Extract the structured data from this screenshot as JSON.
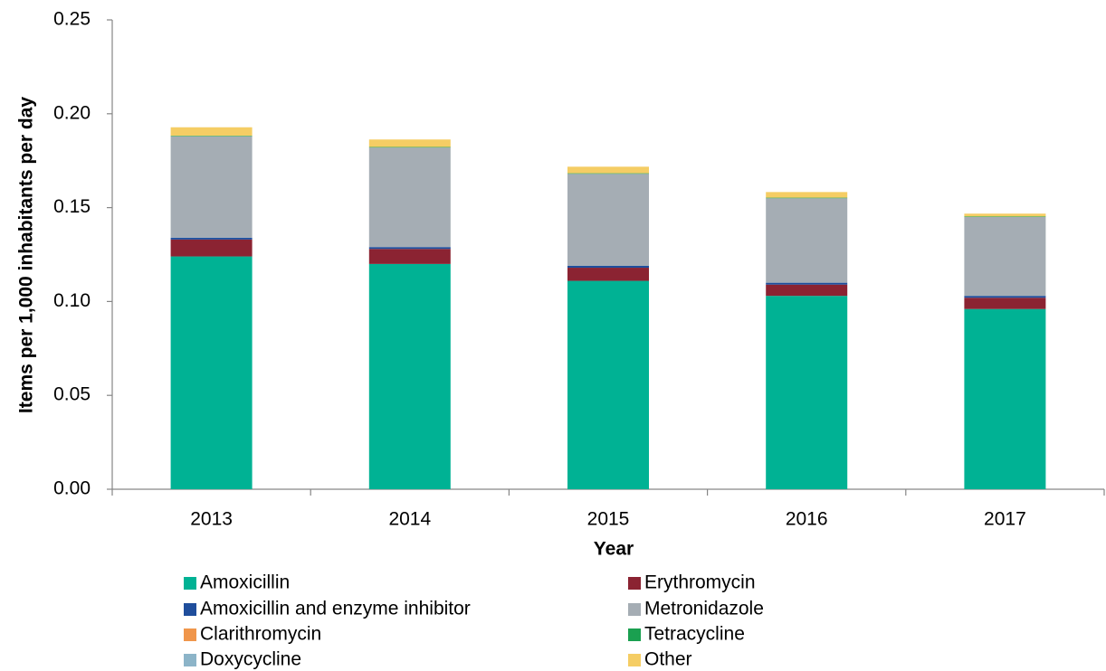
{
  "chart_data": {
    "type": "stacked_bar",
    "x_label": "Year",
    "y_label": "Items per 1,000 inhabitants per day",
    "categories": [
      "2013",
      "2014",
      "2015",
      "2016",
      "2017"
    ],
    "series": [
      {
        "name": "Amoxicillin",
        "color": "#00b294",
        "values": [
          0.124,
          0.12,
          0.111,
          0.103,
          0.096
        ]
      },
      {
        "name": "Erythromycin",
        "color": "#8b2332",
        "values": [
          0.009,
          0.008,
          0.007,
          0.006,
          0.006
        ]
      },
      {
        "name": "Amoxicillin and enzyme inhibitor",
        "color": "#1f4e9c",
        "values": [
          0.001,
          0.001,
          0.001,
          0.001,
          0.001
        ]
      },
      {
        "name": "Metronidazole",
        "color": "#a5adb4",
        "values": [
          0.054,
          0.053,
          0.049,
          0.045,
          0.042
        ]
      },
      {
        "name": "Clarithromycin",
        "color": "#f0964b",
        "values": [
          0,
          0,
          0,
          0,
          0
        ]
      },
      {
        "name": "Tetracycline",
        "color": "#1aa050",
        "values": [
          0.0003,
          0.0003,
          0.0003,
          0.0003,
          0.0003
        ]
      },
      {
        "name": "Doxycycline",
        "color": "#8cb4c8",
        "values": [
          0,
          0,
          0,
          0,
          0
        ]
      },
      {
        "name": "Other",
        "color": "#f5cd64",
        "values": [
          0.0045,
          0.004,
          0.0035,
          0.003,
          0.0015
        ]
      }
    ],
    "ylim": [
      0,
      0.25
    ],
    "yticks": [
      {
        "value": 0,
        "label": "0.00"
      },
      0.05,
      {
        "value": 0.1,
        "label": "0.10"
      },
      0.15,
      {
        "value": 0.2,
        "label": "0.20"
      },
      0.25
    ],
    "grid": false
  }
}
